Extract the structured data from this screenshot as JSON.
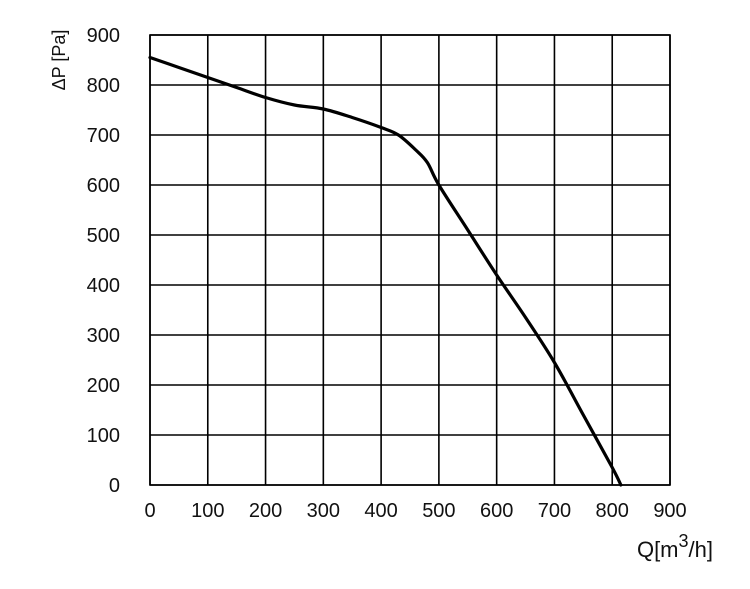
{
  "chart_data": {
    "type": "line",
    "title": "",
    "xlabel": "Q[m3/h]",
    "xlabel_parts": {
      "base": "Q[m",
      "sup": "3",
      "tail": "/h]"
    },
    "ylabel": "ΔP [Pa]",
    "xlim": [
      0,
      900
    ],
    "ylim": [
      0,
      900
    ],
    "x_ticks": [
      0,
      100,
      200,
      300,
      400,
      500,
      600,
      700,
      800,
      900
    ],
    "y_ticks": [
      0,
      100,
      200,
      300,
      400,
      500,
      600,
      700,
      800,
      900
    ],
    "grid": true,
    "legend": "none",
    "line_color": "#000000",
    "series": [
      {
        "x": [
          0,
          50,
          100,
          150,
          200,
          250,
          300,
          350,
          400,
          430,
          460,
          480,
          500,
          550,
          600,
          650,
          700,
          750,
          800,
          815
        ],
        "y": [
          855,
          835,
          815,
          795,
          775,
          760,
          752,
          735,
          715,
          700,
          670,
          645,
          600,
          510,
          420,
          335,
          245,
          140,
          35,
          0
        ]
      }
    ]
  }
}
